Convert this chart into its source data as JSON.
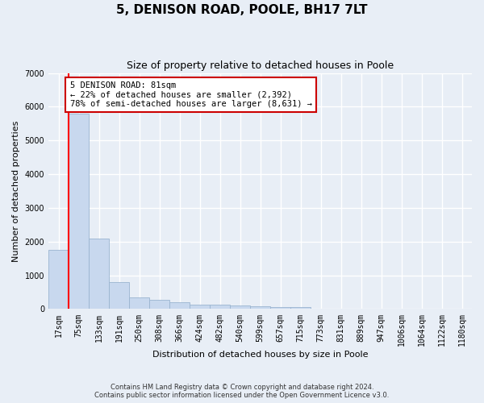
{
  "title": "5, DENISON ROAD, POOLE, BH17 7LT",
  "subtitle": "Size of property relative to detached houses in Poole",
  "xlabel": "Distribution of detached houses by size in Poole",
  "ylabel": "Number of detached properties",
  "categories": [
    "17sqm",
    "75sqm",
    "133sqm",
    "191sqm",
    "250sqm",
    "308sqm",
    "366sqm",
    "424sqm",
    "482sqm",
    "540sqm",
    "599sqm",
    "657sqm",
    "715sqm",
    "773sqm",
    "831sqm",
    "889sqm",
    "947sqm",
    "1006sqm",
    "1064sqm",
    "1122sqm",
    "1180sqm"
  ],
  "values": [
    1750,
    5800,
    2100,
    800,
    350,
    270,
    200,
    140,
    130,
    100,
    90,
    60,
    60,
    0,
    0,
    0,
    0,
    0,
    0,
    0,
    0
  ],
  "bar_color": "#c8d8ee",
  "bar_edge_color": "#9ab4d0",
  "red_line_x": 0.55,
  "annotation_text_line1": "5 DENISON ROAD: 81sqm",
  "annotation_text_line2": "← 22% of detached houses are smaller (2,392)",
  "annotation_text_line3": "78% of semi-detached houses are larger (8,631) →",
  "annotation_box_color": "#ffffff",
  "annotation_box_edge_color": "#cc0000",
  "ylim": [
    0,
    7000
  ],
  "yticks": [
    0,
    1000,
    2000,
    3000,
    4000,
    5000,
    6000,
    7000
  ],
  "footnote1": "Contains HM Land Registry data © Crown copyright and database right 2024.",
  "footnote2": "Contains public sector information licensed under the Open Government Licence v3.0.",
  "background_color": "#e8eef6",
  "plot_background_color": "#e8eef6",
  "grid_color": "#ffffff",
  "title_fontsize": 11,
  "subtitle_fontsize": 9,
  "label_fontsize": 8,
  "tick_fontsize": 7,
  "annotation_fontsize": 7.5
}
